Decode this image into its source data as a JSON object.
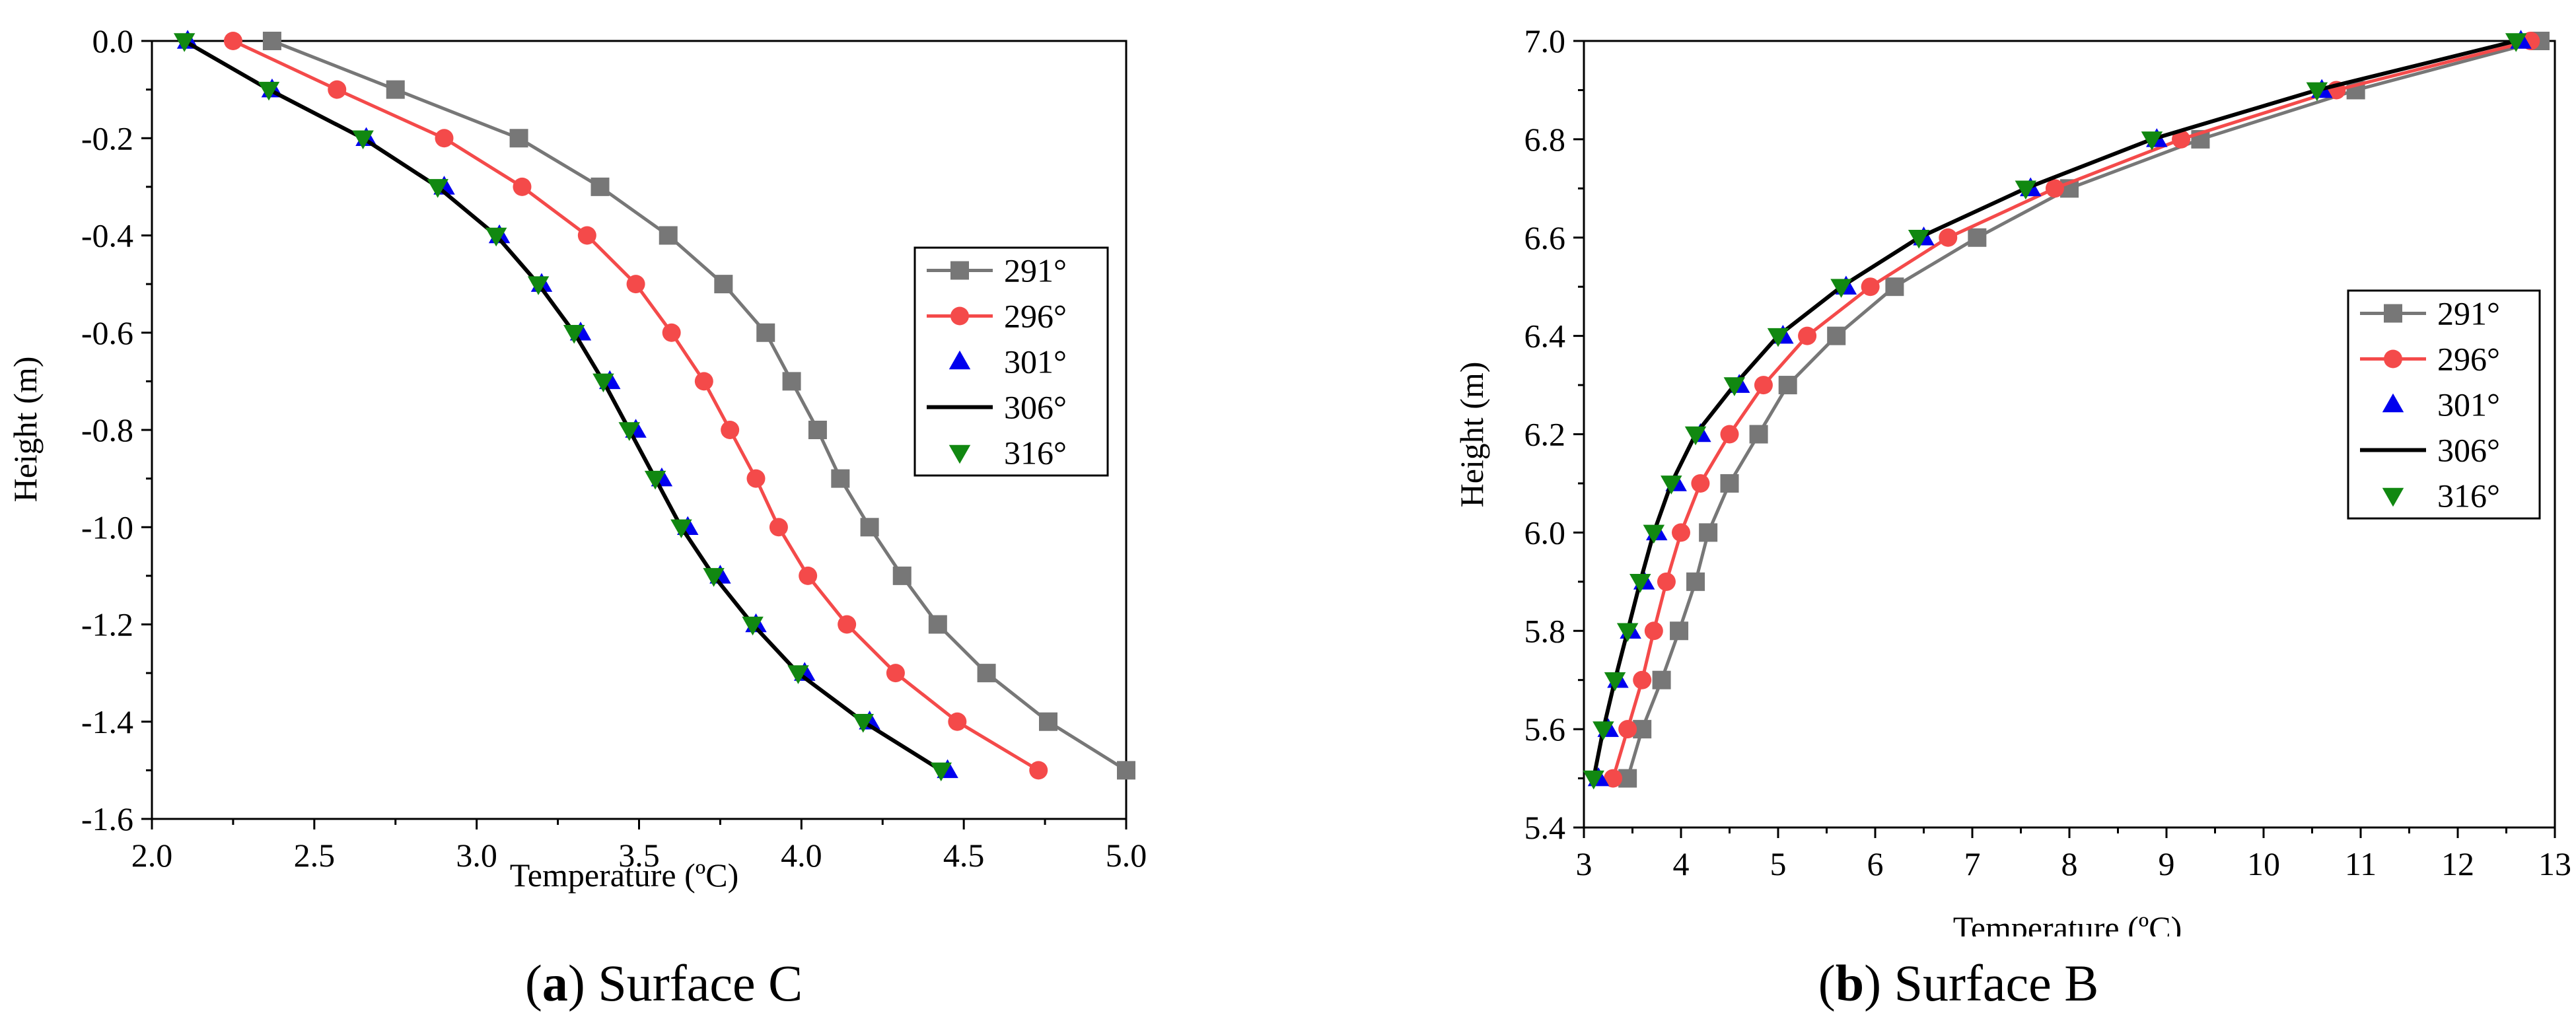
{
  "figures": [
    {
      "caption_letter": "a",
      "caption_text": " Surface C",
      "caption_open": "(",
      "caption_close": ")"
    },
    {
      "caption_letter": "b",
      "caption_text": " Surface B",
      "caption_open": "(",
      "caption_close": ")"
    }
  ],
  "chart_data": [
    {
      "type": "line",
      "title": "(a) Surface C",
      "xlabel": "Temperature (ºC)",
      "ylabel": "Height (m)",
      "xlim": [
        2.0,
        5.0
      ],
      "ylim": [
        -1.6,
        0.0
      ],
      "xticks": [
        2.0,
        2.5,
        3.0,
        3.5,
        4.0,
        4.5,
        5.0
      ],
      "xtick_labels": [
        "2.0",
        "2.5",
        "3.0",
        "3.5",
        "4.0",
        "4.5",
        "5.0"
      ],
      "yticks": [
        0.0,
        -0.2,
        -0.4,
        -0.6,
        -0.8,
        -1.0,
        -1.2,
        -1.4,
        -1.6
      ],
      "ytick_labels": [
        "0.0",
        "-0.2",
        "-0.4",
        "-0.6",
        "-0.8",
        "-1.0",
        "-1.2",
        "-1.4",
        "-1.6"
      ],
      "legend_position": "right",
      "y": [
        0.0,
        -0.1,
        -0.2,
        -0.3,
        -0.4,
        -0.5,
        -0.6,
        -0.7,
        -0.8,
        -0.9,
        -1.0,
        -1.1,
        -1.2,
        -1.3,
        -1.4,
        -1.5
      ],
      "series": [
        {
          "name": "291°",
          "color": "#777777",
          "marker": "square",
          "line": true,
          "x": [
            2.37,
            2.75,
            3.13,
            3.38,
            3.59,
            3.76,
            3.89,
            3.97,
            4.05,
            4.12,
            4.21,
            4.31,
            4.42,
            4.57,
            4.76,
            5.0
          ]
        },
        {
          "name": "296°",
          "color": "#f44a4a",
          "marker": "circle",
          "line": true,
          "x": [
            2.25,
            2.57,
            2.9,
            3.14,
            3.34,
            3.49,
            3.6,
            3.7,
            3.78,
            3.86,
            3.93,
            4.02,
            4.14,
            4.29,
            4.48,
            4.73
          ]
        },
        {
          "name": "301°",
          "color": "#0000ee",
          "marker": "triangle-up",
          "line": false,
          "x": [
            2.11,
            2.37,
            2.66,
            2.9,
            3.07,
            3.2,
            3.32,
            3.41,
            3.49,
            3.57,
            3.65,
            3.75,
            3.86,
            4.01,
            4.21,
            4.45
          ]
        },
        {
          "name": "306°",
          "color": "#000000",
          "marker": "none",
          "line": true,
          "x": [
            2.1,
            2.36,
            2.65,
            2.88,
            3.06,
            3.19,
            3.3,
            3.39,
            3.47,
            3.55,
            3.63,
            3.73,
            3.85,
            3.99,
            4.19,
            4.43
          ]
        },
        {
          "name": "316°",
          "color": "#118811",
          "marker": "triangle-down",
          "line": false,
          "x": [
            2.1,
            2.36,
            2.65,
            2.88,
            3.06,
            3.19,
            3.3,
            3.39,
            3.47,
            3.55,
            3.63,
            3.73,
            3.85,
            3.99,
            4.19,
            4.43
          ]
        }
      ]
    },
    {
      "type": "line",
      "title": "(b) Surface B",
      "xlabel": "Temperature (ºC)",
      "ylabel": "Height (m)",
      "xlim": [
        3,
        13
      ],
      "ylim": [
        5.4,
        7.0
      ],
      "xticks": [
        3,
        4,
        5,
        6,
        7,
        8,
        9,
        10,
        11,
        12,
        13
      ],
      "xtick_labels": [
        "3",
        "4",
        "5",
        "6",
        "7",
        "8",
        "9",
        "10",
        "11",
        "12",
        "13"
      ],
      "yticks": [
        7.0,
        6.8,
        6.6,
        6.4,
        6.2,
        6.0,
        5.8,
        5.6,
        5.4
      ],
      "ytick_labels": [
        "7.0",
        "6.8",
        "6.6",
        "6.4",
        "6.2",
        "6.0",
        "5.8",
        "5.6",
        "5.4"
      ],
      "legend_position": "right",
      "y": [
        5.5,
        5.6,
        5.7,
        5.8,
        5.9,
        6.0,
        6.1,
        6.2,
        6.3,
        6.4,
        6.5,
        6.6,
        6.7,
        6.8,
        6.9,
        7.0
      ],
      "series": [
        {
          "name": "291°",
          "color": "#777777",
          "marker": "square",
          "line": true,
          "x": [
            3.45,
            3.6,
            3.8,
            3.98,
            4.15,
            4.28,
            4.5,
            4.8,
            5.1,
            5.6,
            6.2,
            7.05,
            8.0,
            9.35,
            10.95,
            12.85
          ]
        },
        {
          "name": "296°",
          "color": "#f44a4a",
          "marker": "circle",
          "line": true,
          "x": [
            3.3,
            3.45,
            3.6,
            3.72,
            3.85,
            4.0,
            4.2,
            4.5,
            4.85,
            5.3,
            5.95,
            6.75,
            7.85,
            9.15,
            10.75,
            12.75
          ]
        },
        {
          "name": "301°",
          "color": "#0000ee",
          "marker": "triangle-up",
          "line": false,
          "x": [
            3.15,
            3.25,
            3.35,
            3.48,
            3.62,
            3.75,
            3.95,
            4.2,
            4.6,
            5.05,
            5.7,
            6.5,
            7.6,
            8.9,
            10.6,
            12.65
          ]
        },
        {
          "name": "306°",
          "color": "#000000",
          "marker": "none",
          "line": true,
          "x": [
            3.1,
            3.2,
            3.32,
            3.45,
            3.58,
            3.72,
            3.9,
            4.15,
            4.55,
            5.0,
            5.65,
            6.45,
            7.55,
            8.85,
            10.55,
            12.6
          ]
        },
        {
          "name": "316°",
          "color": "#118811",
          "marker": "triangle-down",
          "line": false,
          "x": [
            3.1,
            3.2,
            3.32,
            3.45,
            3.58,
            3.72,
            3.9,
            4.15,
            4.55,
            5.0,
            5.65,
            6.45,
            7.55,
            8.85,
            10.55,
            12.6
          ]
        }
      ]
    }
  ]
}
